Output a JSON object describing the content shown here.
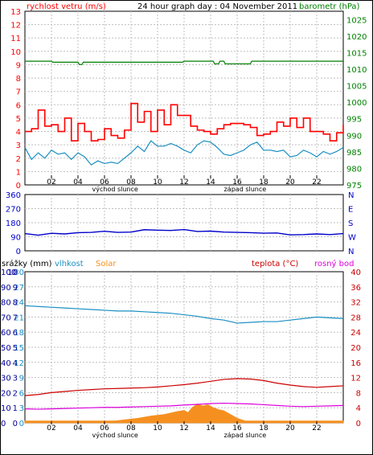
{
  "title": "24 hour graph day : 04 November 2011",
  "colors": {
    "wind": "#ff0000",
    "gust": "#ee0000",
    "baro": "#008000",
    "dir": "#0000cc",
    "hum": "#1a8fc2",
    "solar": "#f59020",
    "temp": "#cc0000",
    "dew": "#dd00dd",
    "grid": "#bfbfbf",
    "rain": "#000099"
  },
  "chart_data": [
    {
      "type": "line",
      "id": "wind-baro",
      "title": "24 hour graph day : 04 November 2011",
      "left_label": "rychlost vetru (m/s)",
      "right_label": "barometr (hPa)",
      "ylim_left": [
        0,
        13
      ],
      "ylim_right": [
        975,
        1027.5
      ],
      "yticks_left": [
        "0",
        "1",
        "2",
        "3",
        "4",
        "5",
        "6",
        "7",
        "8",
        "9",
        "10",
        "11",
        "12",
        "13"
      ],
      "yticks_right": [
        "975",
        "980",
        "985",
        "990",
        "995",
        "1000",
        "1005",
        "1010",
        "1015",
        "1020",
        "1025"
      ],
      "yticks_right_values": [
        975,
        980,
        985,
        990,
        995,
        1000,
        1005,
        1010,
        1015,
        1020,
        1025
      ],
      "xticks": [
        "02",
        "04",
        "06",
        "08",
        "10",
        "12",
        "14",
        "16",
        "18",
        "20",
        "22"
      ],
      "xticks_hours": [
        2,
        4,
        6,
        8,
        10,
        12,
        14,
        16,
        18,
        20,
        22
      ],
      "annotations": [
        {
          "text": "východ slunce",
          "x_hour": 6.8
        },
        {
          "text": "západ slunce",
          "x_hour": 16.6
        }
      ],
      "series": [
        {
          "name": "gust",
          "color": "#ff0000",
          "style": "step",
          "x": [
            0,
            0.5,
            1,
            1.5,
            2,
            2.5,
            3,
            3.5,
            4,
            4.5,
            5,
            5.5,
            6,
            6.5,
            7,
            7.5,
            8,
            8.5,
            9,
            9.5,
            10,
            10.5,
            11,
            11.5,
            12,
            12.5,
            13,
            13.5,
            14,
            14.5,
            15,
            15.5,
            16,
            16.5,
            17,
            17.5,
            18,
            18.5,
            19,
            19.5,
            20,
            20.5,
            21,
            21.5,
            22,
            22.5,
            23,
            23.5,
            24
          ],
          "values": [
            4,
            4.2,
            5.6,
            4.4,
            4.5,
            4,
            5,
            3.3,
            4.6,
            4,
            3.3,
            3.4,
            4.2,
            3.7,
            3.5,
            4.1,
            6.1,
            4.7,
            5.5,
            4,
            5.6,
            4.5,
            6,
            5.2,
            5.2,
            4.4,
            4.1,
            4,
            3.8,
            4.2,
            4.5,
            4.6,
            4.6,
            4.5,
            4.3,
            3.7,
            3.8,
            4,
            4.7,
            4.4,
            5,
            4.3,
            5,
            4,
            4,
            3.8,
            3.3,
            3.9,
            4.5
          ]
        },
        {
          "name": "wind",
          "color": "#1a8fc2",
          "x": [
            0,
            0.5,
            1,
            1.5,
            2,
            2.5,
            3,
            3.5,
            4,
            4.5,
            5,
            5.5,
            6,
            6.5,
            7,
            7.5,
            8,
            8.5,
            9,
            9.5,
            10,
            10.5,
            11,
            11.5,
            12,
            12.5,
            13,
            13.5,
            14,
            14.5,
            15,
            15.5,
            16,
            16.5,
            17,
            17.5,
            18,
            18.5,
            19,
            19.5,
            20,
            20.5,
            21,
            21.5,
            22,
            22.5,
            23,
            23.5,
            24
          ],
          "values": [
            2.8,
            1.9,
            2.4,
            2.0,
            2.6,
            2.3,
            2.4,
            1.9,
            2.4,
            2.1,
            1.5,
            1.8,
            1.6,
            1.7,
            1.6,
            2.0,
            2.4,
            2.9,
            2.5,
            3.3,
            2.9,
            2.9,
            3.1,
            2.9,
            2.6,
            2.4,
            3.0,
            3.3,
            3.2,
            2.8,
            2.3,
            2.2,
            2.4,
            2.6,
            3.0,
            3.2,
            2.6,
            2.6,
            2.5,
            2.6,
            2.1,
            2.2,
            2.6,
            2.4,
            2.1,
            2.5,
            2.3,
            2.5,
            2.8
          ]
        },
        {
          "name": "barometr",
          "color": "#008000",
          "axis": "right",
          "x": [
            0,
            2,
            2.1,
            4.0,
            4.1,
            4.3,
            4.4,
            6,
            8,
            10,
            11.9,
            12.0,
            14.2,
            14.3,
            14.6,
            14.7,
            15.0,
            15.1,
            17,
            17.1,
            20,
            22,
            24
          ],
          "values": [
            1012.4,
            1012.4,
            1012.1,
            1012.1,
            1011.4,
            1011.4,
            1012.1,
            1012.1,
            1012.1,
            1012.1,
            1012.1,
            1012.4,
            1012.4,
            1011.6,
            1011.6,
            1012.4,
            1012.4,
            1011.6,
            1011.6,
            1012.4,
            1012.4,
            1012.4,
            1012.4
          ]
        }
      ]
    },
    {
      "type": "line",
      "id": "direction",
      "ylim": [
        0,
        360
      ],
      "yticks": [
        "0",
        "90",
        "180",
        "270",
        "360"
      ],
      "yticks_values": [
        0,
        90,
        180,
        270,
        360
      ],
      "right_ticks": [
        "N",
        "W",
        "S",
        "E",
        "N"
      ],
      "xticks": [
        "02",
        "04",
        "06",
        "08",
        "10",
        "12",
        "14",
        "16",
        "18",
        "20",
        "22"
      ],
      "xticks_hours": [
        2,
        4,
        6,
        8,
        10,
        12,
        14,
        16,
        18,
        20,
        22
      ],
      "series": [
        {
          "name": "direction",
          "color": "#0000cc",
          "x": [
            0,
            1,
            2,
            3,
            4,
            5,
            6,
            7,
            8,
            9,
            10,
            11,
            12,
            13,
            14,
            15,
            16,
            17,
            18,
            19,
            20,
            21,
            22,
            23,
            24
          ],
          "values": [
            110,
            100,
            112,
            108,
            116,
            118,
            125,
            118,
            120,
            135,
            132,
            130,
            136,
            124,
            126,
            120,
            118,
            116,
            113,
            114,
            102,
            104,
            108,
            104,
            110
          ]
        }
      ]
    },
    {
      "type": "line",
      "id": "temp-hum-solar",
      "labels": {
        "rain": "srážky (mm)",
        "humidity": "vlhkost",
        "solar": "Solar",
        "temperature": "teplota (°C)",
        "dewpoint": "rosný bod"
      },
      "rain_ticks": [
        "0",
        "1",
        "2",
        "3",
        "4",
        "5",
        "6",
        "7",
        "8",
        "9",
        "10"
      ],
      "humidity_ticks": [
        "0",
        "3",
        "6",
        "9",
        "12",
        "15",
        "18",
        "21",
        "24",
        "27",
        "30"
      ],
      "temp_ticks": [
        "0",
        "4",
        "8",
        "12",
        "16",
        "20",
        "24",
        "28",
        "32",
        "36",
        "40"
      ],
      "left_scale_ticks": [
        "0",
        "10",
        "20",
        "30",
        "40",
        "50",
        "60",
        "70",
        "80",
        "90",
        "100"
      ],
      "ylim_temp": [
        0,
        40
      ],
      "ylim_humidity": [
        0,
        100
      ],
      "xticks": [
        "02",
        "04",
        "06",
        "08",
        "10",
        "12",
        "14",
        "16",
        "18",
        "20",
        "22"
      ],
      "xticks_hours": [
        2,
        4,
        6,
        8,
        10,
        12,
        14,
        16,
        18,
        20,
        22
      ],
      "annotations": [
        {
          "text": "východ slunce",
          "x_hour": 6.8
        },
        {
          "text": "západ slunce",
          "x_hour": 16.6
        }
      ],
      "series": [
        {
          "name": "vlhkost",
          "color": "#1a8fc2",
          "axis": "humidity",
          "x": [
            0,
            1,
            2,
            3,
            4,
            5,
            6,
            7,
            8,
            9,
            10,
            11,
            12,
            13,
            14,
            15,
            15.5,
            16,
            17,
            18,
            19,
            20,
            21,
            22,
            23,
            24
          ],
          "values": [
            77.5,
            77,
            76.5,
            76,
            75.5,
            75,
            74.5,
            74,
            74,
            73.5,
            73,
            72.5,
            71.5,
            70.5,
            69,
            68,
            67,
            66,
            66.5,
            67,
            67,
            68,
            69,
            70,
            69.5,
            69
          ]
        },
        {
          "name": "teplota",
          "color": "#cc0000",
          "axis": "temp",
          "x": [
            0,
            1,
            2,
            3,
            4,
            5,
            6,
            7,
            8,
            9,
            10,
            11,
            12,
            13,
            14,
            15,
            16,
            17,
            18,
            19,
            20,
            21,
            22,
            23,
            24
          ],
          "values": [
            7.2,
            7.5,
            8.0,
            8.3,
            8.6,
            8.8,
            9.0,
            9.1,
            9.2,
            9.3,
            9.5,
            9.8,
            10.1,
            10.5,
            11.0,
            11.5,
            11.7,
            11.6,
            11.2,
            10.5,
            10.0,
            9.6,
            9.4,
            9.6,
            9.8
          ]
        },
        {
          "name": "rosný bod",
          "color": "#dd00dd",
          "axis": "temp",
          "x": [
            0,
            1,
            2,
            3,
            4,
            5,
            6,
            7,
            8,
            9,
            10,
            11,
            12,
            13,
            14,
            15,
            16,
            17,
            18,
            19,
            20,
            21,
            22,
            23,
            24
          ],
          "values": [
            3.7,
            3.6,
            3.7,
            3.8,
            3.9,
            4.0,
            4.1,
            4.1,
            4.2,
            4.3,
            4.4,
            4.5,
            4.7,
            4.9,
            5.1,
            5.2,
            5.1,
            5.0,
            4.8,
            4.6,
            4.4,
            4.3,
            4.4,
            4.5,
            4.6
          ]
        },
        {
          "name": "Solar",
          "color": "#f59020",
          "axis": "temp",
          "style": "area",
          "x": [
            0,
            6.8,
            7.5,
            8.5,
            9.5,
            10.5,
            11,
            11.5,
            12,
            12.3,
            12.6,
            13,
            13.4,
            13.8,
            14.2,
            14.6,
            15,
            15.5,
            16,
            16.6,
            24
          ],
          "values": [
            0.5,
            0.5,
            0.8,
            1.2,
            1.8,
            2.2,
            2.6,
            3.0,
            3.3,
            2.7,
            4.0,
            5.0,
            4.5,
            4.8,
            4.0,
            3.5,
            3.2,
            2.2,
            1.2,
            0.5,
            0.5
          ]
        }
      ]
    }
  ]
}
